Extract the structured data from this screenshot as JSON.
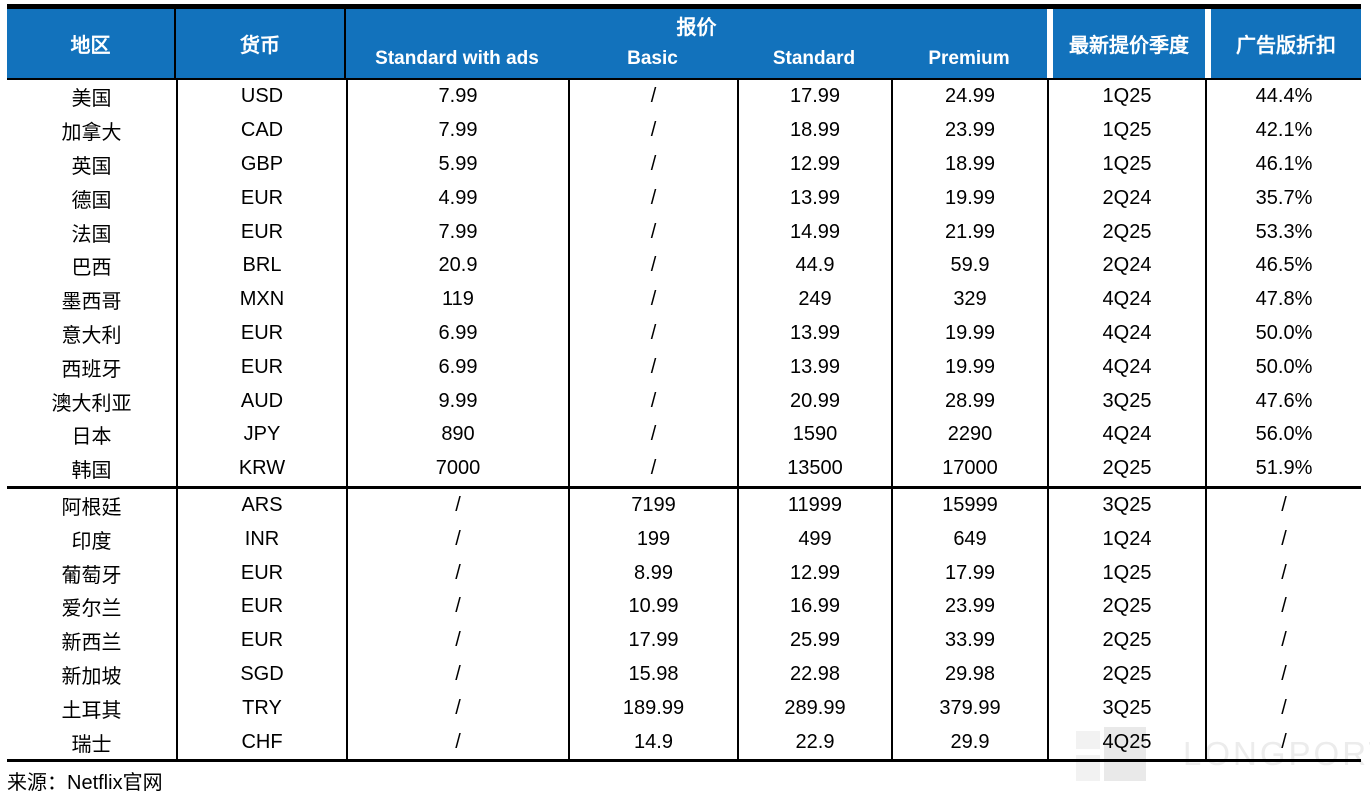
{
  "chart_data": {
    "type": "table",
    "header": {
      "region": "地区",
      "currency": "货币",
      "price_group": "报价",
      "plan_columns": [
        "Standard with ads",
        "Basic",
        "Standard",
        "Premium"
      ],
      "latest_hike_quarter": "最新提价季度",
      "ads_discount": "广告版折扣"
    },
    "columns": [
      "地区",
      "货币",
      "Standard with ads",
      "Basic",
      "Standard",
      "Premium",
      "最新提价季度",
      "广告版折扣"
    ],
    "sections": [
      {
        "rows": [
          [
            "美国",
            "USD",
            "7.99",
            "/",
            "17.99",
            "24.99",
            "1Q25",
            "44.4%"
          ],
          [
            "加拿大",
            "CAD",
            "7.99",
            "/",
            "18.99",
            "23.99",
            "1Q25",
            "42.1%"
          ],
          [
            "英国",
            "GBP",
            "5.99",
            "/",
            "12.99",
            "18.99",
            "1Q25",
            "46.1%"
          ],
          [
            "德国",
            "EUR",
            "4.99",
            "/",
            "13.99",
            "19.99",
            "2Q24",
            "35.7%"
          ],
          [
            "法国",
            "EUR",
            "7.99",
            "/",
            "14.99",
            "21.99",
            "2Q25",
            "53.3%"
          ],
          [
            "巴西",
            "BRL",
            "20.9",
            "/",
            "44.9",
            "59.9",
            "2Q24",
            "46.5%"
          ],
          [
            "墨西哥",
            "MXN",
            "119",
            "/",
            "249",
            "329",
            "4Q24",
            "47.8%"
          ],
          [
            "意大利",
            "EUR",
            "6.99",
            "/",
            "13.99",
            "19.99",
            "4Q24",
            "50.0%"
          ],
          [
            "西班牙",
            "EUR",
            "6.99",
            "/",
            "13.99",
            "19.99",
            "4Q24",
            "50.0%"
          ],
          [
            "澳大利亚",
            "AUD",
            "9.99",
            "/",
            "20.99",
            "28.99",
            "3Q25",
            "47.6%"
          ],
          [
            "日本",
            "JPY",
            "890",
            "/",
            "1590",
            "2290",
            "4Q24",
            "56.0%"
          ],
          [
            "韩国",
            "KRW",
            "7000",
            "/",
            "13500",
            "17000",
            "2Q25",
            "51.9%"
          ]
        ]
      },
      {
        "rows": [
          [
            "阿根廷",
            "ARS",
            "/",
            "7199",
            "11999",
            "15999",
            "3Q25",
            "/"
          ],
          [
            "印度",
            "INR",
            "/",
            "199",
            "499",
            "649",
            "1Q24",
            "/"
          ],
          [
            "葡萄牙",
            "EUR",
            "/",
            "8.99",
            "12.99",
            "17.99",
            "1Q25",
            "/"
          ],
          [
            "爱尔兰",
            "EUR",
            "/",
            "10.99",
            "16.99",
            "23.99",
            "2Q25",
            "/"
          ],
          [
            "新西兰",
            "EUR",
            "/",
            "17.99",
            "25.99",
            "33.99",
            "2Q25",
            "/"
          ],
          [
            "新加坡",
            "SGD",
            "/",
            "15.98",
            "22.98",
            "29.98",
            "2Q25",
            "/"
          ],
          [
            "土耳其",
            "TRY",
            "/",
            "189.99",
            "289.99",
            "379.99",
            "3Q25",
            "/"
          ],
          [
            "瑞士",
            "CHF",
            "/",
            "14.9",
            "22.9",
            "29.9",
            "4Q25",
            "/"
          ]
        ]
      }
    ]
  },
  "source_note": "来源：Netflix官网",
  "watermark_text": "LONGPORT",
  "colors": {
    "header_blue": "#1272bc",
    "border_black": "#000000",
    "watermark_gray": "#ececec"
  }
}
